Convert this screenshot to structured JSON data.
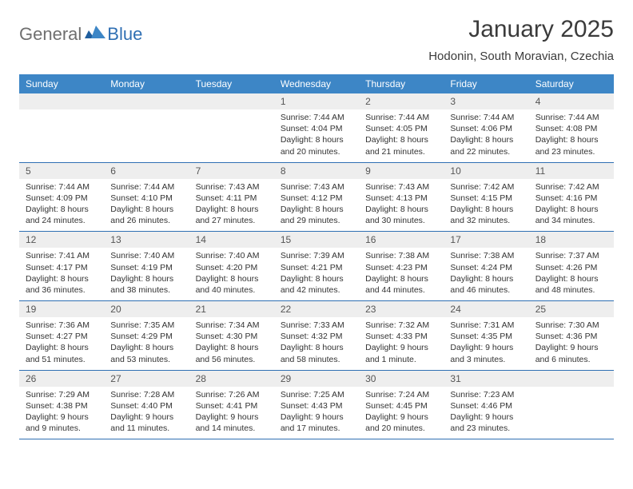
{
  "brand": {
    "part1": "General",
    "part2": "Blue"
  },
  "title": "January 2025",
  "location": "Hodonin, South Moravian, Czechia",
  "colors": {
    "header_bg": "#3d86c6",
    "header_text": "#ffffff",
    "daynum_bg": "#eeeeee",
    "rule": "#2f6fb3",
    "brand_gray": "#6f6f6f",
    "brand_blue": "#2f6fb3",
    "page_bg": "#ffffff",
    "text": "#333333"
  },
  "dow": [
    "Sunday",
    "Monday",
    "Tuesday",
    "Wednesday",
    "Thursday",
    "Friday",
    "Saturday"
  ],
  "weeks": [
    [
      {
        "n": "",
        "sr": "",
        "ss": "",
        "dl": ""
      },
      {
        "n": "",
        "sr": "",
        "ss": "",
        "dl": ""
      },
      {
        "n": "",
        "sr": "",
        "ss": "",
        "dl": ""
      },
      {
        "n": "1",
        "sr": "Sunrise: 7:44 AM",
        "ss": "Sunset: 4:04 PM",
        "dl": "Daylight: 8 hours and 20 minutes."
      },
      {
        "n": "2",
        "sr": "Sunrise: 7:44 AM",
        "ss": "Sunset: 4:05 PM",
        "dl": "Daylight: 8 hours and 21 minutes."
      },
      {
        "n": "3",
        "sr": "Sunrise: 7:44 AM",
        "ss": "Sunset: 4:06 PM",
        "dl": "Daylight: 8 hours and 22 minutes."
      },
      {
        "n": "4",
        "sr": "Sunrise: 7:44 AM",
        "ss": "Sunset: 4:08 PM",
        "dl": "Daylight: 8 hours and 23 minutes."
      }
    ],
    [
      {
        "n": "5",
        "sr": "Sunrise: 7:44 AM",
        "ss": "Sunset: 4:09 PM",
        "dl": "Daylight: 8 hours and 24 minutes."
      },
      {
        "n": "6",
        "sr": "Sunrise: 7:44 AM",
        "ss": "Sunset: 4:10 PM",
        "dl": "Daylight: 8 hours and 26 minutes."
      },
      {
        "n": "7",
        "sr": "Sunrise: 7:43 AM",
        "ss": "Sunset: 4:11 PM",
        "dl": "Daylight: 8 hours and 27 minutes."
      },
      {
        "n": "8",
        "sr": "Sunrise: 7:43 AM",
        "ss": "Sunset: 4:12 PM",
        "dl": "Daylight: 8 hours and 29 minutes."
      },
      {
        "n": "9",
        "sr": "Sunrise: 7:43 AM",
        "ss": "Sunset: 4:13 PM",
        "dl": "Daylight: 8 hours and 30 minutes."
      },
      {
        "n": "10",
        "sr": "Sunrise: 7:42 AM",
        "ss": "Sunset: 4:15 PM",
        "dl": "Daylight: 8 hours and 32 minutes."
      },
      {
        "n": "11",
        "sr": "Sunrise: 7:42 AM",
        "ss": "Sunset: 4:16 PM",
        "dl": "Daylight: 8 hours and 34 minutes."
      }
    ],
    [
      {
        "n": "12",
        "sr": "Sunrise: 7:41 AM",
        "ss": "Sunset: 4:17 PM",
        "dl": "Daylight: 8 hours and 36 minutes."
      },
      {
        "n": "13",
        "sr": "Sunrise: 7:40 AM",
        "ss": "Sunset: 4:19 PM",
        "dl": "Daylight: 8 hours and 38 minutes."
      },
      {
        "n": "14",
        "sr": "Sunrise: 7:40 AM",
        "ss": "Sunset: 4:20 PM",
        "dl": "Daylight: 8 hours and 40 minutes."
      },
      {
        "n": "15",
        "sr": "Sunrise: 7:39 AM",
        "ss": "Sunset: 4:21 PM",
        "dl": "Daylight: 8 hours and 42 minutes."
      },
      {
        "n": "16",
        "sr": "Sunrise: 7:38 AM",
        "ss": "Sunset: 4:23 PM",
        "dl": "Daylight: 8 hours and 44 minutes."
      },
      {
        "n": "17",
        "sr": "Sunrise: 7:38 AM",
        "ss": "Sunset: 4:24 PM",
        "dl": "Daylight: 8 hours and 46 minutes."
      },
      {
        "n": "18",
        "sr": "Sunrise: 7:37 AM",
        "ss": "Sunset: 4:26 PM",
        "dl": "Daylight: 8 hours and 48 minutes."
      }
    ],
    [
      {
        "n": "19",
        "sr": "Sunrise: 7:36 AM",
        "ss": "Sunset: 4:27 PM",
        "dl": "Daylight: 8 hours and 51 minutes."
      },
      {
        "n": "20",
        "sr": "Sunrise: 7:35 AM",
        "ss": "Sunset: 4:29 PM",
        "dl": "Daylight: 8 hours and 53 minutes."
      },
      {
        "n": "21",
        "sr": "Sunrise: 7:34 AM",
        "ss": "Sunset: 4:30 PM",
        "dl": "Daylight: 8 hours and 56 minutes."
      },
      {
        "n": "22",
        "sr": "Sunrise: 7:33 AM",
        "ss": "Sunset: 4:32 PM",
        "dl": "Daylight: 8 hours and 58 minutes."
      },
      {
        "n": "23",
        "sr": "Sunrise: 7:32 AM",
        "ss": "Sunset: 4:33 PM",
        "dl": "Daylight: 9 hours and 1 minute."
      },
      {
        "n": "24",
        "sr": "Sunrise: 7:31 AM",
        "ss": "Sunset: 4:35 PM",
        "dl": "Daylight: 9 hours and 3 minutes."
      },
      {
        "n": "25",
        "sr": "Sunrise: 7:30 AM",
        "ss": "Sunset: 4:36 PM",
        "dl": "Daylight: 9 hours and 6 minutes."
      }
    ],
    [
      {
        "n": "26",
        "sr": "Sunrise: 7:29 AM",
        "ss": "Sunset: 4:38 PM",
        "dl": "Daylight: 9 hours and 9 minutes."
      },
      {
        "n": "27",
        "sr": "Sunrise: 7:28 AM",
        "ss": "Sunset: 4:40 PM",
        "dl": "Daylight: 9 hours and 11 minutes."
      },
      {
        "n": "28",
        "sr": "Sunrise: 7:26 AM",
        "ss": "Sunset: 4:41 PM",
        "dl": "Daylight: 9 hours and 14 minutes."
      },
      {
        "n": "29",
        "sr": "Sunrise: 7:25 AM",
        "ss": "Sunset: 4:43 PM",
        "dl": "Daylight: 9 hours and 17 minutes."
      },
      {
        "n": "30",
        "sr": "Sunrise: 7:24 AM",
        "ss": "Sunset: 4:45 PM",
        "dl": "Daylight: 9 hours and 20 minutes."
      },
      {
        "n": "31",
        "sr": "Sunrise: 7:23 AM",
        "ss": "Sunset: 4:46 PM",
        "dl": "Daylight: 9 hours and 23 minutes."
      },
      {
        "n": "",
        "sr": "",
        "ss": "",
        "dl": ""
      }
    ]
  ]
}
